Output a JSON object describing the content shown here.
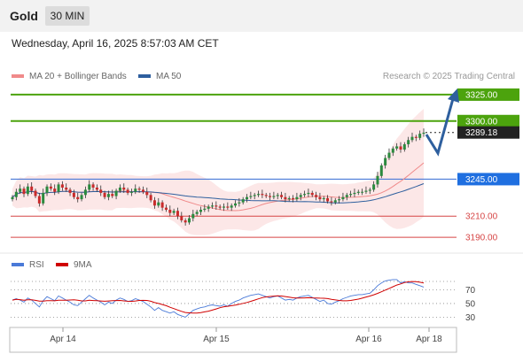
{
  "header": {
    "title": "Gold",
    "period": "30 MIN",
    "datetime": "Wednesday, April 16, 2025 8:57:03 AM CET"
  },
  "legend": {
    "ma20": "MA 20 + Bollinger Bands",
    "ma50": "MA 50",
    "credit": "Research © 2025 Trading Central",
    "rsi": "RSI",
    "ma9": "9MA"
  },
  "colors": {
    "green": "#4ca30d",
    "blue": "#4a7ad8",
    "red": "#d64545",
    "dark": "#222222",
    "arrow": "#2e5f9e",
    "band": "#fbe3e3"
  },
  "chart_data": {
    "type": "candlestick",
    "x_labels": [
      "Apr 14",
      "Apr 15",
      "Apr 16",
      "Apr 18"
    ],
    "price_levels": [
      {
        "value": 3325.0,
        "label": "3325.00",
        "style": "resistance-green"
      },
      {
        "value": 3300.0,
        "label": "3300.00",
        "style": "resistance-green"
      },
      {
        "value": 3289.18,
        "label": "3289.18",
        "style": "last-price"
      },
      {
        "value": 3245.0,
        "label": "3245.00",
        "style": "pivot-blue"
      },
      {
        "value": 3210.0,
        "label": "3210.00",
        "style": "support-red"
      },
      {
        "value": 3190.0,
        "label": "3190.00",
        "style": "support-red"
      }
    ],
    "price_range": [
      3180,
      3335
    ],
    "rsi_levels": [
      70,
      50,
      30
    ],
    "rsi_range": [
      15,
      90
    ],
    "close_series": [
      3228,
      3233,
      3236,
      3231,
      3238,
      3234,
      3229,
      3222,
      3232,
      3238,
      3236,
      3233,
      3240,
      3237,
      3235,
      3232,
      3228,
      3226,
      3230,
      3235,
      3240,
      3237,
      3235,
      3232,
      3228,
      3231,
      3229,
      3234,
      3237,
      3235,
      3232,
      3233,
      3236,
      3235,
      3233,
      3230,
      3225,
      3220,
      3223,
      3218,
      3216,
      3213,
      3215,
      3210,
      3206,
      3204,
      3208,
      3212,
      3214,
      3216,
      3217,
      3219,
      3220,
      3219,
      3218,
      3219,
      3218,
      3220,
      3222,
      3223,
      3226,
      3228,
      3229,
      3230,
      3231,
      3230,
      3229,
      3228,
      3229,
      3230,
      3228,
      3226,
      3227,
      3226,
      3228,
      3230,
      3231,
      3232,
      3230,
      3228,
      3226,
      3227,
      3224,
      3223,
      3225,
      3226,
      3228,
      3230,
      3231,
      3232,
      3233,
      3233,
      3234,
      3235,
      3240,
      3248,
      3258,
      3265,
      3270,
      3274,
      3276,
      3273,
      3278,
      3282,
      3285,
      3284,
      3288,
      3289
    ],
    "rsi_series": [
      55,
      57,
      55,
      52,
      58,
      55,
      50,
      45,
      54,
      60,
      57,
      54,
      61,
      58,
      55,
      52,
      48,
      47,
      52,
      57,
      62,
      58,
      55,
      52,
      48,
      52,
      50,
      55,
      58,
      56,
      53,
      54,
      57,
      55,
      53,
      49,
      45,
      40,
      44,
      40,
      38,
      36,
      38,
      34,
      32,
      30,
      35,
      40,
      42,
      44,
      45,
      47,
      48,
      47,
      46,
      48,
      46,
      50,
      53,
      55,
      58,
      60,
      62,
      63,
      64,
      62,
      60,
      58,
      60,
      61,
      58,
      55,
      56,
      55,
      58,
      60,
      61,
      62,
      59,
      56,
      53,
      55,
      50,
      49,
      52,
      54,
      57,
      59,
      61,
      62,
      63,
      63,
      64,
      65,
      70,
      76,
      80,
      83,
      84,
      85,
      85,
      80,
      82,
      80,
      80,
      78,
      76,
      74
    ]
  }
}
